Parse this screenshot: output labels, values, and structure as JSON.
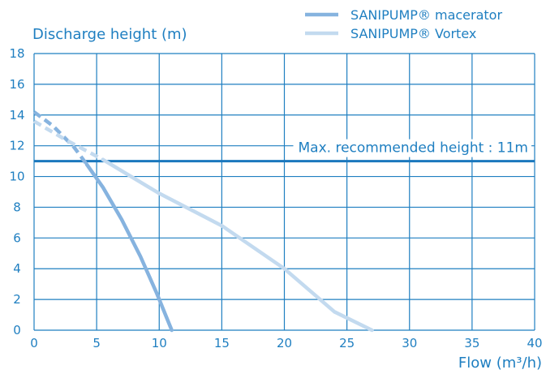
{
  "chart_data": {
    "type": "line",
    "title": "",
    "xlabel": "Flow (m³/h)",
    "ylabel": "Discharge height (m)",
    "xlim": [
      0,
      40
    ],
    "ylim": [
      0,
      18
    ],
    "x_ticks": [
      "0",
      "5",
      "10",
      "15",
      "20",
      "25",
      "30",
      "35",
      "40"
    ],
    "y_ticks": [
      "0",
      "2",
      "4",
      "6",
      "8",
      "10",
      "12",
      "14",
      "16",
      "18"
    ],
    "grid": true,
    "legend_position": "top-right",
    "series": [
      {
        "name": "SANIPUMP® macerator",
        "color": "#86b3df",
        "dashed_segment": [
          [
            0,
            14.2
          ],
          [
            1.5,
            13.3
          ],
          [
            3.2,
            11.9
          ],
          [
            4.2,
            10.8
          ]
        ],
        "points": [
          [
            4.2,
            10.8
          ],
          [
            5.5,
            9.3
          ],
          [
            7,
            7.2
          ],
          [
            8.5,
            4.8
          ],
          [
            9.8,
            2.4
          ],
          [
            10.5,
            1.0
          ],
          [
            11,
            0
          ]
        ]
      },
      {
        "name": "SANIPUMP® Vortex",
        "color": "#c3daef",
        "dashed_segment": [
          [
            0,
            13.6
          ],
          [
            2.5,
            12.4
          ],
          [
            5.5,
            11.1
          ]
        ],
        "points": [
          [
            5.5,
            11.1
          ],
          [
            10,
            8.9
          ],
          [
            15,
            6.8
          ],
          [
            20,
            4.0
          ],
          [
            24,
            1.2
          ],
          [
            27,
            0
          ]
        ]
      }
    ],
    "reference_line": {
      "value": 11,
      "label": "Max. recommended height : 11m",
      "color": "#1a77bd"
    }
  }
}
